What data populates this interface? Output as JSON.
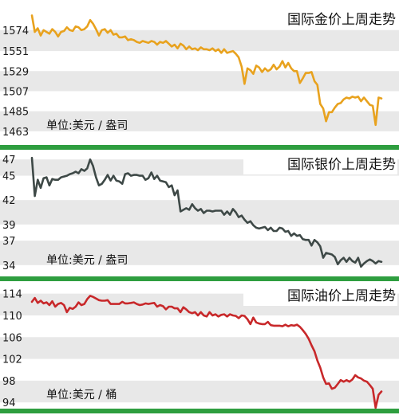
{
  "chart_data": [
    {
      "type": "line",
      "title": "国际金价上周走势",
      "unit_label": "单位:美元 / 盎司",
      "ylim": [
        1455,
        1600
      ],
      "yticks": [
        1574,
        1551,
        1529,
        1507,
        1485,
        1463
      ],
      "grid": "alternating-bands",
      "colors": {
        "line": "#E8A21E",
        "band": "#E8E8E8",
        "separator": "#2E9E3F"
      },
      "series": [
        {
          "x": [
            0,
            1,
            2,
            3,
            4,
            5,
            6,
            7,
            8,
            9,
            10,
            11,
            12,
            13,
            14,
            15,
            16,
            17,
            18,
            19,
            20,
            21,
            22,
            23,
            24,
            25,
            26,
            27,
            28,
            29,
            30,
            31,
            32,
            33,
            34,
            35,
            36,
            37,
            38,
            39,
            40,
            41,
            42,
            43,
            44,
            45,
            46,
            47,
            48,
            49,
            50,
            51,
            52,
            53,
            54,
            55,
            56,
            57,
            58,
            59,
            60,
            61,
            62,
            63,
            64,
            65,
            66,
            67,
            68,
            69,
            70,
            71,
            72,
            73,
            74,
            75,
            76,
            77,
            78,
            79,
            80,
            81,
            82,
            83,
            84,
            85,
            86,
            87,
            88,
            89,
            90,
            91,
            92,
            93,
            94,
            95,
            96,
            97,
            98,
            99,
            100,
            101,
            102,
            103,
            104,
            105,
            106,
            107,
            108,
            109,
            110,
            111,
            112,
            113,
            114,
            115,
            116,
            117,
            118,
            119,
            120
          ],
          "y": [
            1590,
            1572,
            1576,
            1568,
            1574,
            1572,
            1570,
            1575,
            1572,
            1567,
            1572,
            1573,
            1577,
            1574,
            1573,
            1578,
            1577,
            1574,
            1575,
            1578,
            1585,
            1581,
            1575,
            1568,
            1574,
            1575,
            1571,
            1574,
            1569,
            1570,
            1566,
            1566,
            1567,
            1563,
            1564,
            1563,
            1561,
            1560,
            1562,
            1561,
            1560,
            1562,
            1561,
            1558,
            1561,
            1560,
            1562,
            1559,
            1556,
            1558,
            1554,
            1559,
            1557,
            1553,
            1556,
            1553,
            1554,
            1552,
            1555,
            1553,
            1553,
            1552,
            1554,
            1551,
            1553,
            1549,
            1553,
            1549,
            1550,
            1551,
            1548,
            1544,
            1534,
            1515,
            1532,
            1530,
            1526,
            1535,
            1533,
            1528,
            1532,
            1529,
            1531,
            1536,
            1531,
            1534,
            1540,
            1533,
            1538,
            1532,
            1529,
            1529,
            1516,
            1521,
            1527,
            1527,
            1528,
            1518,
            1514,
            1493,
            1488,
            1474,
            1484,
            1484,
            1489,
            1493,
            1494,
            1498,
            1500,
            1499,
            1501,
            1500,
            1501,
            1496,
            1500,
            1496,
            1492,
            1491,
            1470,
            1500,
            1499
          ]
        }
      ]
    },
    {
      "type": "line",
      "title": "国际银价上周走势",
      "unit_label": "单位:美元 / 盎司",
      "ylim": [
        33,
        48
      ],
      "yticks": [
        47,
        45,
        42,
        39,
        37,
        34
      ],
      "grid": "alternating-bands",
      "colors": {
        "line": "#3E4947",
        "band": "#E8E8E8",
        "separator": "#2E9E3F"
      },
      "series": [
        {
          "x": [
            0,
            1,
            2,
            3,
            4,
            5,
            6,
            7,
            8,
            9,
            10,
            11,
            12,
            13,
            14,
            15,
            16,
            17,
            18,
            19,
            20,
            21,
            22,
            23,
            24,
            25,
            26,
            27,
            28,
            29,
            30,
            31,
            32,
            33,
            34,
            35,
            36,
            37,
            38,
            39,
            40,
            41,
            42,
            43,
            44,
            45,
            46,
            47,
            48,
            49,
            50,
            51,
            52,
            53,
            54,
            55,
            56,
            57,
            58,
            59,
            60,
            61,
            62,
            63,
            64,
            65,
            66,
            67,
            68,
            69,
            70,
            71,
            72,
            73,
            74,
            75,
            76,
            77,
            78,
            79,
            80,
            81,
            82,
            83,
            84,
            85,
            86,
            87,
            88,
            89,
            90,
            91,
            92,
            93,
            94,
            95,
            96,
            97,
            98,
            99,
            100,
            101,
            102,
            103,
            104,
            105,
            106,
            107,
            108,
            109,
            110,
            111,
            112,
            113,
            114,
            115,
            116,
            117,
            118,
            119,
            120
          ],
          "y": [
            47.2,
            42.5,
            44.5,
            43.5,
            44.7,
            44.8,
            43.8,
            44.6,
            44.5,
            44.5,
            44.8,
            44.9,
            45.0,
            45.2,
            45.3,
            45.5,
            45.3,
            45.8,
            45.6,
            45.9,
            47.0,
            46.2,
            44.8,
            43.8,
            44.0,
            44.5,
            45.1,
            44.4,
            45.0,
            44.4,
            44.3,
            44.0,
            45.2,
            45.3,
            45.0,
            45.1,
            45.1,
            45.0,
            45.0,
            44.5,
            44.7,
            45.4,
            44.6,
            45.0,
            44.4,
            44.3,
            44.2,
            43.6,
            43.8,
            42.6,
            43.2,
            40.6,
            40.8,
            41.0,
            40.8,
            41.5,
            41.0,
            40.7,
            40.9,
            40.4,
            40.7,
            40.7,
            40.6,
            40.7,
            40.7,
            40.7,
            40.2,
            40.6,
            40.2,
            40.9,
            40.5,
            39.9,
            40.1,
            39.6,
            39.2,
            39.4,
            38.9,
            38.6,
            38.5,
            38.6,
            38.7,
            38.3,
            38.6,
            38.2,
            38.2,
            38.6,
            38.5,
            38.1,
            38.2,
            37.6,
            37.9,
            37.6,
            37.7,
            37.2,
            37.1,
            37.1,
            36.4,
            37.1,
            36.8,
            36.3,
            34.9,
            35.5,
            35.4,
            35.3,
            35.0,
            34.1,
            34.6,
            34.9,
            34.4,
            34.9,
            34.5,
            34.3,
            34.9,
            33.8,
            34.2,
            34.5,
            34.7,
            34.5,
            34.2,
            34.5,
            34.4
          ]
        }
      ]
    },
    {
      "type": "line",
      "title": "国际油价上周走势",
      "unit_label": "单位:美元 / 桶",
      "ylim": [
        93,
        116
      ],
      "yticks": [
        114,
        110,
        106,
        102,
        98,
        94
      ],
      "grid": "alternating-bands",
      "colors": {
        "line": "#C8282A",
        "band": "#E8E8E8",
        "separator": "#2E9E3F"
      },
      "series": [
        {
          "x": [
            0,
            1,
            2,
            3,
            4,
            5,
            6,
            7,
            8,
            9,
            10,
            11,
            12,
            13,
            14,
            15,
            16,
            17,
            18,
            19,
            20,
            21,
            22,
            23,
            24,
            25,
            26,
            27,
            28,
            29,
            30,
            31,
            32,
            33,
            34,
            35,
            36,
            37,
            38,
            39,
            40,
            41,
            42,
            43,
            44,
            45,
            46,
            47,
            48,
            49,
            50,
            51,
            52,
            53,
            54,
            55,
            56,
            57,
            58,
            59,
            60,
            61,
            62,
            63,
            64,
            65,
            66,
            67,
            68,
            69,
            70,
            71,
            72,
            73,
            74,
            75,
            76,
            77,
            78,
            79,
            80,
            81,
            82,
            83,
            84,
            85,
            86,
            87,
            88,
            89,
            90,
            91,
            92,
            93,
            94,
            95,
            96,
            97,
            98,
            99,
            100,
            101,
            102,
            103,
            104,
            105,
            106,
            107,
            108,
            109,
            110,
            111,
            112,
            113,
            114,
            115,
            116,
            117,
            118,
            119,
            120
          ],
          "y": [
            112.5,
            113.2,
            112.3,
            112.7,
            112.2,
            112.4,
            111.9,
            112.6,
            111.6,
            112.1,
            112.3,
            111.9,
            110.6,
            111.4,
            111.2,
            111.6,
            112.4,
            111.9,
            112.1,
            113.0,
            113.6,
            113.4,
            113.1,
            112.8,
            112.7,
            112.7,
            112.8,
            112.1,
            112.1,
            112.1,
            112.1,
            112.5,
            112.2,
            112.2,
            112.3,
            112.4,
            112.1,
            111.9,
            112.0,
            112.2,
            112.1,
            112.2,
            112.3,
            111.6,
            111.9,
            111.7,
            111.1,
            111.6,
            111.6,
            111.3,
            111.3,
            110.6,
            111.5,
            111.1,
            110.6,
            110.4,
            110.6,
            110.0,
            110.6,
            110.0,
            109.8,
            110.6,
            110.0,
            110.2,
            109.8,
            110.1,
            110.2,
            109.8,
            110.2,
            110.0,
            109.9,
            109.5,
            110.0,
            109.9,
            109.3,
            108.4,
            109.6,
            108.7,
            108.5,
            108.4,
            108.4,
            108.8,
            108.2,
            108.1,
            108.1,
            108.1,
            108.0,
            108.3,
            108.0,
            108.2,
            108.1,
            108.3,
            107.9,
            107.3,
            106.6,
            105.7,
            104.5,
            103.4,
            101.7,
            100.4,
            98.6,
            97.4,
            97.5,
            96.5,
            96.7,
            97.4,
            98.1,
            97.8,
            98.1,
            97.8,
            98.2,
            99.0,
            98.6,
            98.4,
            98.0,
            97.8,
            97.2,
            96.5,
            93.0,
            95.4,
            96.0
          ]
        }
      ]
    }
  ]
}
